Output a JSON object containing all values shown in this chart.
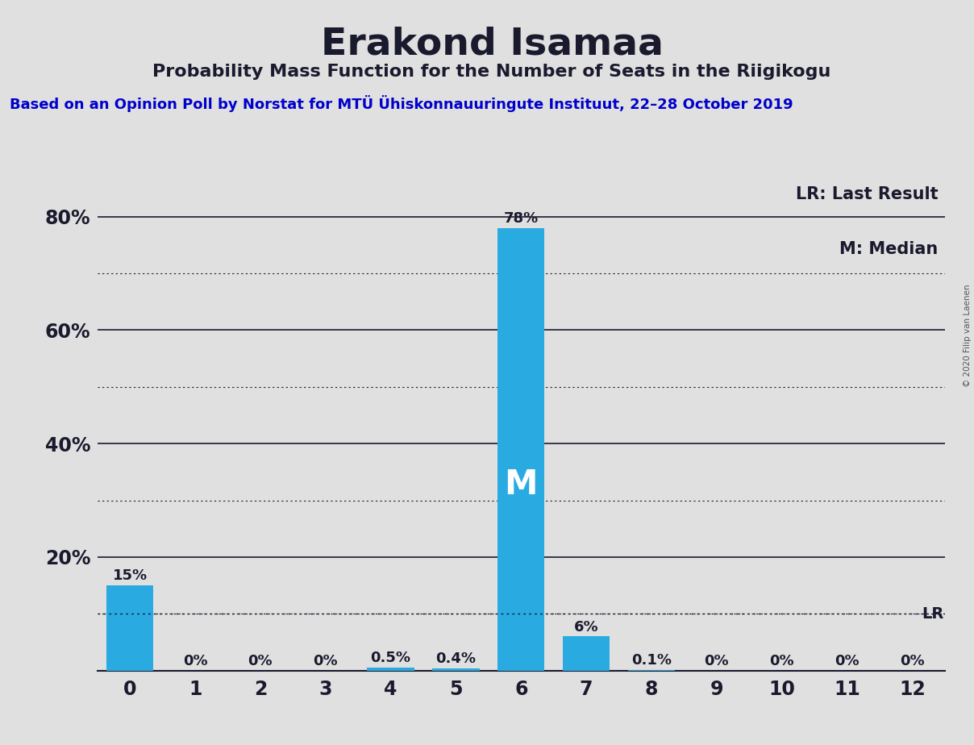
{
  "title": "Erakond Isamaa",
  "subtitle": "Probability Mass Function for the Number of Seats in the Riigikogu",
  "source_line": "Based on an Opinion Poll by Norstat for MTÜ Ühiskonnauuringute Instituut, 22–28 October 2019",
  "copyright": "© 2020 Filip van Laenen",
  "seats": [
    0,
    1,
    2,
    3,
    4,
    5,
    6,
    7,
    8,
    9,
    10,
    11,
    12
  ],
  "probabilities": [
    0.15,
    0.0,
    0.0,
    0.0,
    0.005,
    0.004,
    0.78,
    0.06,
    0.001,
    0.0,
    0.0,
    0.0,
    0.0
  ],
  "bar_labels": [
    "15%",
    "0%",
    "0%",
    "0%",
    "0.5%",
    "0.4%",
    "78%",
    "6%",
    "0.1%",
    "0%",
    "0%",
    "0%",
    "0%"
  ],
  "bar_color": "#29ABE2",
  "median_seat": 6,
  "lr_value": 0.1,
  "lr_label": "LR",
  "legend_lr": "LR: Last Result",
  "legend_m": "M: Median",
  "bg_color": "#E0E0E0",
  "ytick_solids": [
    0.2,
    0.4,
    0.6,
    0.8
  ],
  "ytick_labels": [
    "20%",
    "40%",
    "60%",
    "80%"
  ],
  "dotted_yticks": [
    0.1,
    0.3,
    0.5,
    0.7
  ],
  "xlim": [
    -0.5,
    12.5
  ],
  "ylim": [
    0,
    0.88
  ]
}
